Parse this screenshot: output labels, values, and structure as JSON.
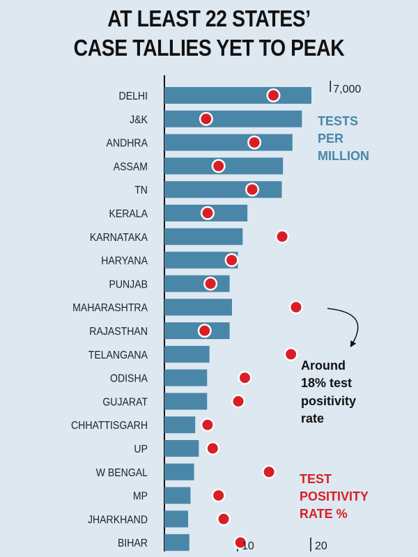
{
  "title_lines": [
    "AT LEAST 22 STATES’",
    "CASE TALLIES YET TO PEAK"
  ],
  "colors": {
    "bar": "#4a86a8",
    "dot": "#d81f26",
    "background": "#dde8f1"
  },
  "legend": {
    "bar_series": [
      "TESTS",
      "PER",
      "MILLION"
    ],
    "dot_series": [
      "TEST",
      "POSITIVITY",
      "RATE %"
    ]
  },
  "annotation": [
    "Around",
    "18% test",
    "positivity",
    "rate"
  ],
  "chart_data": {
    "type": "bar",
    "orientation": "horizontal",
    "categories": [
      "DELHI",
      "J&K",
      "ANDHRA",
      "ASSAM",
      "TN",
      "KERALA",
      "KARNATAKA",
      "HARYANA",
      "PUNJAB",
      "MAHARASHTRA",
      "RAJASTHAN",
      "TELANGANA",
      "ODISHA",
      "GUJARAT",
      "CHHATTISGARH",
      "UP",
      "W BENGAL",
      "MP",
      "JHARKHAND",
      "BIHAR"
    ],
    "series": [
      {
        "name": "TESTS PER MILLION",
        "type": "bar",
        "axis": "top",
        "values": [
          6200,
          5800,
          5400,
          5000,
          4950,
          3500,
          3300,
          3100,
          2750,
          2850,
          2750,
          1900,
          1800,
          1800,
          1300,
          1450,
          1250,
          1100,
          1000,
          1050
        ]
      },
      {
        "name": "TEST POSITIVITY RATE %",
        "type": "dot",
        "axis": "bottom",
        "values": [
          14.9,
          5.7,
          12.3,
          7.4,
          12.0,
          5.9,
          16.1,
          9.2,
          6.3,
          18.0,
          5.5,
          17.3,
          11.0,
          10.1,
          5.9,
          6.6,
          14.3,
          7.4,
          8.1,
          10.4
        ]
      }
    ],
    "top_axis": {
      "ticks": [
        7000
      ],
      "tick_labels": [
        "7,000"
      ],
      "range": [
        0,
        7000
      ]
    },
    "bottom_axis": {
      "ticks": [
        10,
        20
      ],
      "tick_labels": [
        "10",
        "20"
      ],
      "range": [
        0,
        34.4
      ]
    }
  }
}
